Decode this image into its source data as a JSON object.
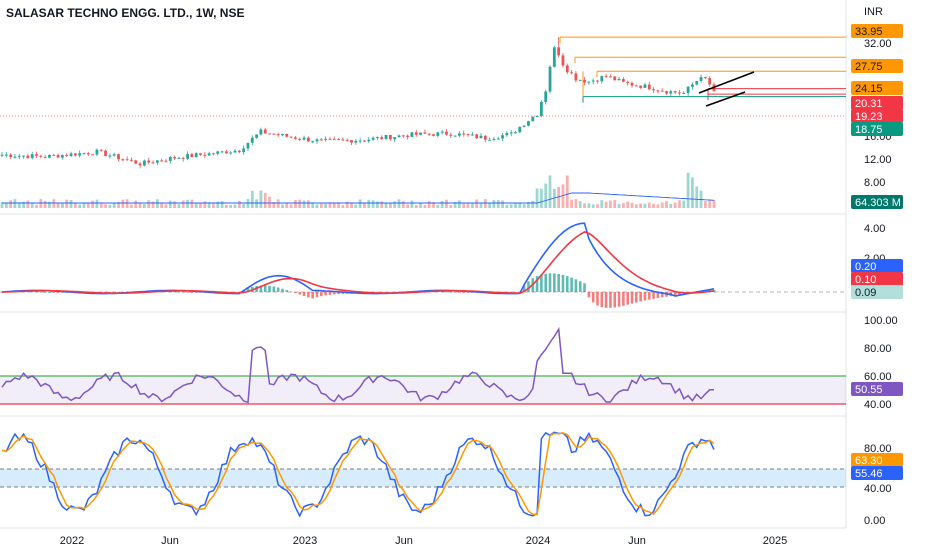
{
  "header": {
    "title": "SALASAR TECHNO ENGG. LTD., 1W, NSE",
    "currency": "INR"
  },
  "colors": {
    "up": "#26a69a",
    "down": "#ef5350",
    "orange": "#ff9800",
    "blue": "#2962ff",
    "purple": "#7e57c2",
    "green_line": "#089981",
    "red_line": "#f23645"
  },
  "chart_data": [
    {
      "type": "candlestick",
      "panel": "price",
      "x_tick_labels": [
        "2022",
        "Jun",
        "2023",
        "Jun",
        "2024",
        "Jun",
        "2025"
      ],
      "y_tick_labels": [
        "32.00",
        "16.00",
        "12.00",
        "8.00"
      ],
      "y_scale": "log",
      "price_levels": [
        {
          "label": "33.95",
          "value": 33.95,
          "color": "#ff9800"
        },
        {
          "label": "27.75",
          "value": 27.75,
          "color": "#ff9800"
        },
        {
          "label": "24.15",
          "value": 24.15,
          "color": "#ff9800"
        },
        {
          "label": "20.31",
          "value": 20.31,
          "color": "#f23645"
        },
        {
          "label": "19.23",
          "value": 19.23,
          "color": "#f23645"
        },
        {
          "label": "18.75",
          "value": 18.75,
          "color": "#089981"
        }
      ],
      "volume_label": "64.303 M",
      "trend_lines": 2
    },
    {
      "type": "macd",
      "panel": "macd",
      "y_tick_labels": [
        "4.00",
        "2.00"
      ],
      "labels": [
        {
          "label": "0.20",
          "color": "#2962ff"
        },
        {
          "label": "0.10",
          "color": "#f23645"
        },
        {
          "label": "0.09",
          "color": "#b2dfdb"
        }
      ]
    },
    {
      "type": "rsi",
      "panel": "rsi",
      "y_tick_labels": [
        "100.00",
        "80.00",
        "60.00",
        "40.00"
      ],
      "upper_band": 60,
      "lower_band": 40,
      "current": {
        "label": "50.55",
        "color": "#7e57c2"
      }
    },
    {
      "type": "stochastic",
      "panel": "stoch",
      "y_tick_labels": [
        "80.00",
        "40.00",
        "0.00"
      ],
      "band": [
        40,
        60
      ],
      "labels": [
        {
          "label": "63.30",
          "color": "#ff9800"
        },
        {
          "label": "55.46",
          "color": "#2962ff"
        }
      ]
    }
  ]
}
